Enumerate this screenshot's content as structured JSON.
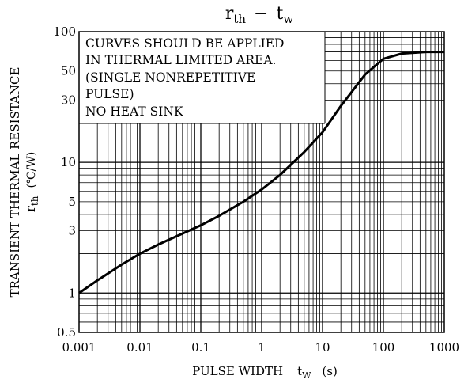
{
  "chart_data": {
    "type": "line",
    "title": {
      "main": "r",
      "main_sub": "th",
      "dash": "−",
      "second": "t",
      "second_sub": "w"
    },
    "xlabel": {
      "text": "PULSE WIDTH",
      "sym": "t",
      "sym_sub": "W",
      "unit": "(s)"
    },
    "ylabel": {
      "line1": "TRANSIENT THERMAL RESISTANCE",
      "sym": "r",
      "sym_sub": "th",
      "unit": "(℃/W)"
    },
    "x_scale": "log",
    "y_scale": "log",
    "xlim": [
      0.001,
      1000
    ],
    "ylim": [
      0.5,
      100
    ],
    "grid": true,
    "x_ticks": [
      {
        "v": 0.001,
        "label": "0.001"
      },
      {
        "v": 0.01,
        "label": "0.01"
      },
      {
        "v": 0.1,
        "label": "0.1"
      },
      {
        "v": 1,
        "label": "1"
      },
      {
        "v": 10,
        "label": "10"
      },
      {
        "v": 100,
        "label": "100"
      },
      {
        "v": 1000,
        "label": "1000"
      }
    ],
    "y_ticks": [
      {
        "v": 0.5,
        "label": "0.5"
      },
      {
        "v": 1,
        "label": "1"
      },
      {
        "v": 3,
        "label": "3"
      },
      {
        "v": 5,
        "label": "5"
      },
      {
        "v": 10,
        "label": "10"
      },
      {
        "v": 30,
        "label": "30"
      },
      {
        "v": 50,
        "label": "50"
      },
      {
        "v": 100,
        "label": "100"
      }
    ],
    "note_lines": [
      "CURVES SHOULD BE APPLIED",
      "IN THERMAL LIMITED AREA.",
      "(SINGLE NONREPETITIVE",
      "PULSE)",
      "NO HEAT SINK"
    ],
    "series": [
      {
        "x": [
          0.001,
          0.002,
          0.005,
          0.01,
          0.02,
          0.05,
          0.1,
          0.2,
          0.5,
          1,
          2,
          5,
          10,
          20,
          50,
          100,
          200,
          500,
          1000
        ],
        "y": [
          1.0,
          1.25,
          1.65,
          2.0,
          2.35,
          2.85,
          3.3,
          3.9,
          5.0,
          6.2,
          8.0,
          12.0,
          17.0,
          27.0,
          47.0,
          62.0,
          68.0,
          70.0,
          70.0
        ]
      }
    ]
  }
}
